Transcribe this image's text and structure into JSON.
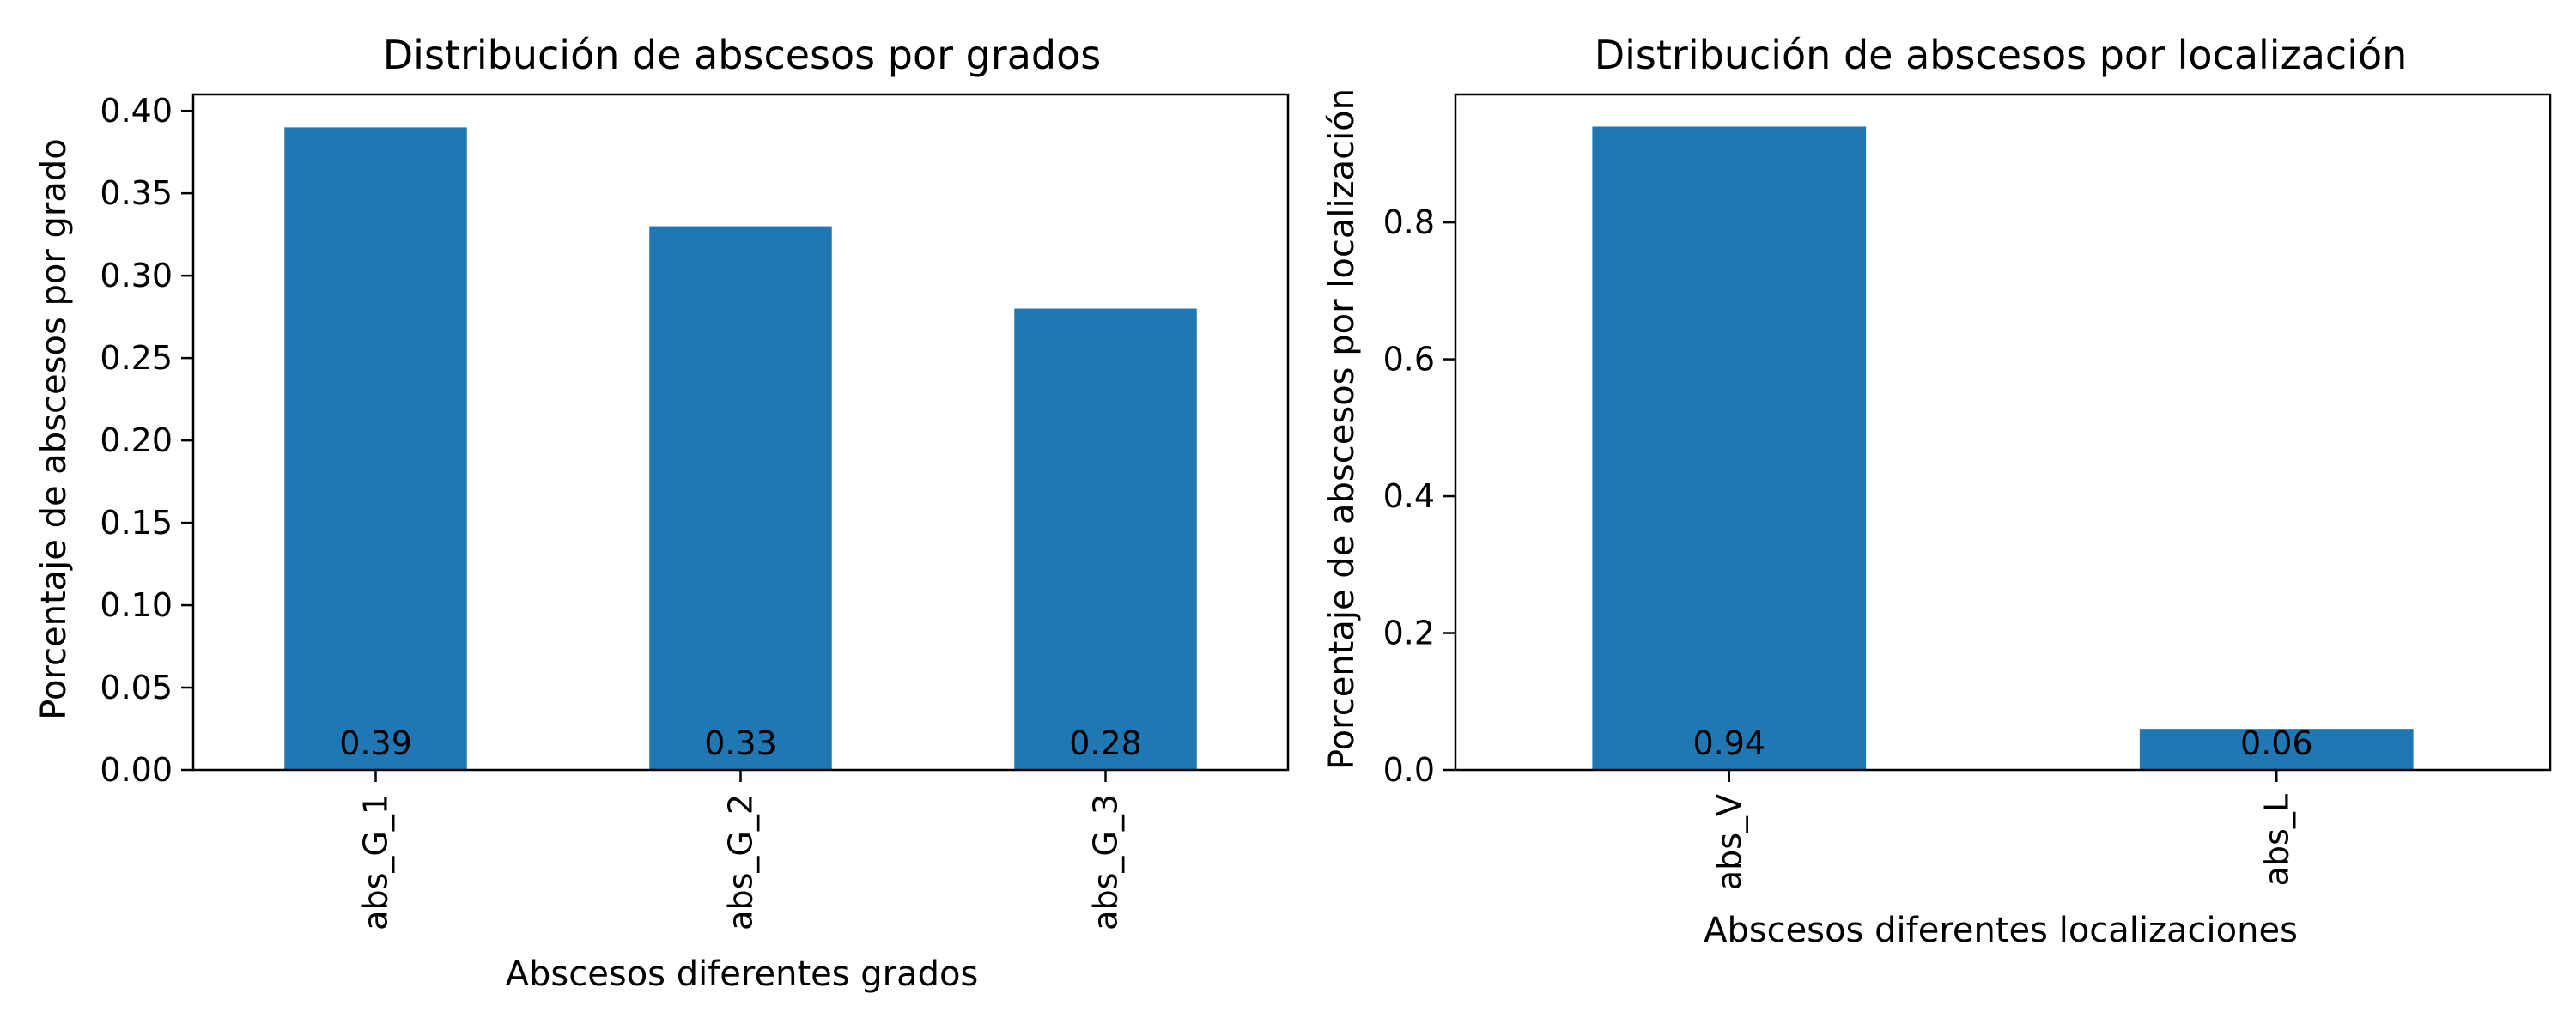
{
  "colors": {
    "bar": "#1f77b4",
    "axis": "#000000",
    "background": "#ffffff"
  },
  "chart_data": [
    {
      "type": "bar",
      "title": "Distribución de abscesos por grados",
      "xlabel": "Abscesos diferentes grados",
      "ylabel": "Porcentaje de abscesos por grado",
      "categories": [
        "abs_G_1",
        "abs_G_2",
        "abs_G_3"
      ],
      "values": [
        0.39,
        0.33,
        0.28
      ],
      "data_labels": [
        "0.39",
        "0.33",
        "0.28"
      ],
      "ylim": [
        0,
        0.41
      ],
      "yticks": [
        0,
        0.05,
        0.1,
        0.15,
        0.2,
        0.25,
        0.3,
        0.35,
        0.4
      ],
      "ytick_labels": [
        "0.00",
        "0.05",
        "0.10",
        "0.15",
        "0.20",
        "0.25",
        "0.30",
        "0.35",
        "0.40"
      ],
      "grid": false,
      "xtick_rotation": "vertical"
    },
    {
      "type": "bar",
      "title": "Distribución de abscesos por localización",
      "xlabel": "Abscesos diferentes localizaciones",
      "ylabel": "Porcentaje de abscesos por localización",
      "categories": [
        "abs_V",
        "abs_L"
      ],
      "values": [
        0.94,
        0.06
      ],
      "data_labels": [
        "0.94",
        "0.06"
      ],
      "ylim": [
        0,
        0.987
      ],
      "yticks": [
        0,
        0.2,
        0.4,
        0.6,
        0.8
      ],
      "ytick_labels": [
        "0.0",
        "0.2",
        "0.4",
        "0.6",
        "0.8"
      ],
      "grid": false,
      "xtick_rotation": "vertical"
    }
  ]
}
